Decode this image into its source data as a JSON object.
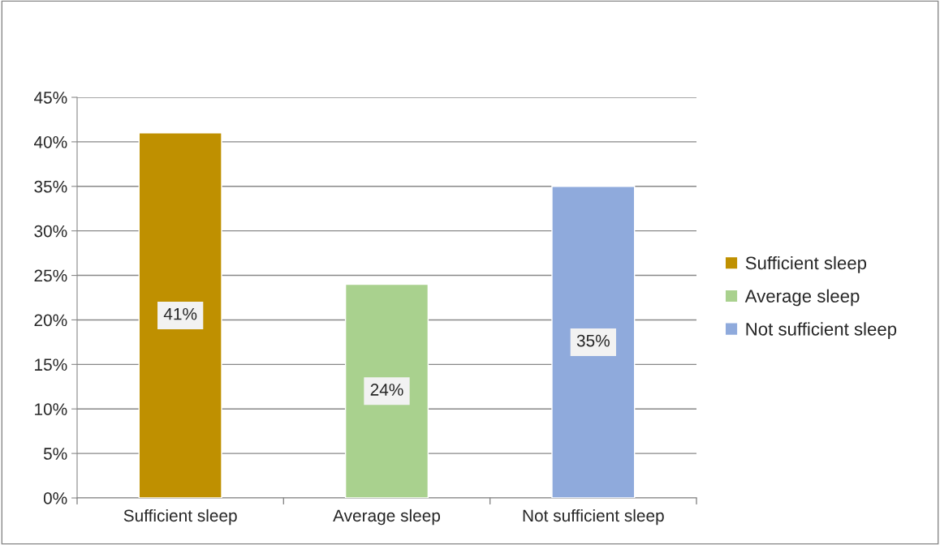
{
  "chart_data": {
    "type": "bar",
    "categories": [
      "Sufficient sleep",
      "Average sleep",
      "Not sufficient sleep"
    ],
    "series": [
      {
        "name": "Sufficient sleep",
        "color": "#bf9000",
        "values": [
          41,
          null,
          null
        ],
        "value_labels": [
          "41%",
          null,
          null
        ]
      },
      {
        "name": "Average sleep",
        "color": "#a9d18e",
        "values": [
          null,
          24,
          null
        ],
        "value_labels": [
          null,
          "24%",
          null
        ]
      },
      {
        "name": "Not sufficient sleep",
        "color": "#8faadc",
        "values": [
          null,
          null,
          35
        ],
        "value_labels": [
          null,
          null,
          "35%"
        ]
      }
    ],
    "ylim": [
      0,
      45
    ],
    "yticks": [
      {
        "value": 0,
        "label": "0%"
      },
      {
        "value": 5,
        "label": "5%"
      },
      {
        "value": 10,
        "label": "10%"
      },
      {
        "value": 15,
        "label": "15%"
      },
      {
        "value": 20,
        "label": "20%"
      },
      {
        "value": 25,
        "label": "25%"
      },
      {
        "value": 30,
        "label": "30%"
      },
      {
        "value": 35,
        "label": "35%"
      },
      {
        "value": 40,
        "label": "40%"
      },
      {
        "value": 45,
        "label": "45%"
      }
    ],
    "grid": "y",
    "legend": "right"
  }
}
